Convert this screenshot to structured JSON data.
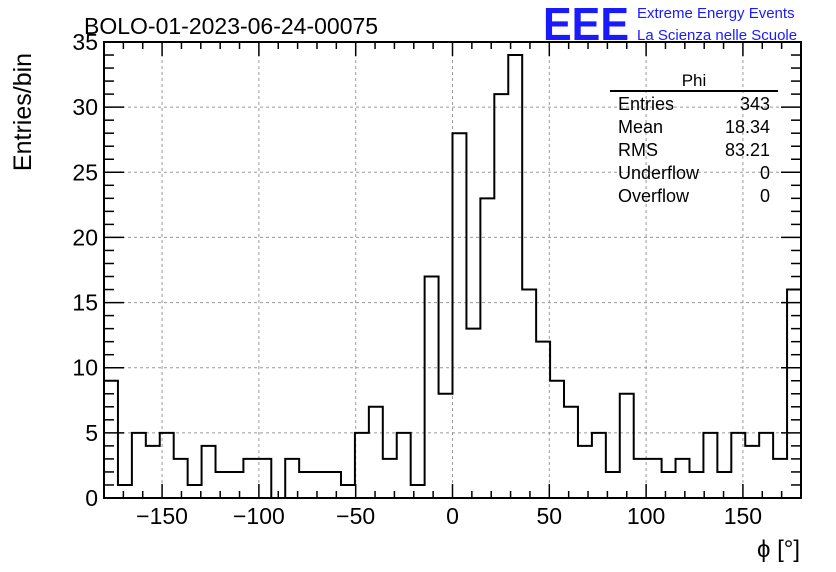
{
  "title": "BOLO-01-2023-06-24-00075",
  "logo": {
    "text": "EEE",
    "line1": "Extreme Energy Events",
    "line2": "La Scienza nelle Scuole",
    "color": "#1a1aff"
  },
  "stats": {
    "name": "Phi",
    "rows": [
      {
        "label": "Entries",
        "value": "343"
      },
      {
        "label": "Mean",
        "value": "18.34"
      },
      {
        "label": "RMS",
        "value": "83.21"
      },
      {
        "label": "Underflow",
        "value": "0"
      },
      {
        "label": "Overflow",
        "value": "0"
      }
    ]
  },
  "chart_data": {
    "type": "histogram",
    "xlabel": "ϕ [°]",
    "ylabel": "Entries/bin",
    "xlim": [
      -180,
      180
    ],
    "ylim": [
      0,
      35
    ],
    "grid": true,
    "bin_width": 7.2,
    "bin_edges_start": -180,
    "values": [
      9,
      1,
      5,
      4,
      5,
      3,
      1,
      4,
      2,
      2,
      3,
      3,
      0,
      3,
      2,
      2,
      2,
      1,
      5,
      7,
      3,
      5,
      1,
      17,
      8,
      28,
      13,
      23,
      31,
      34,
      16,
      12,
      9,
      7,
      4,
      5,
      2,
      8,
      3,
      3,
      2,
      3,
      2,
      5,
      2,
      5,
      4,
      5,
      3,
      16
    ],
    "xticks": [
      -150,
      -100,
      -50,
      0,
      50,
      100,
      150
    ],
    "xtick_labels": [
      "−150",
      "−100",
      "−50",
      "0",
      "50",
      "100",
      "150"
    ],
    "yticks": [
      0,
      5,
      10,
      15,
      20,
      25,
      30,
      35
    ],
    "ytick_labels": [
      "0",
      "5",
      "10",
      "15",
      "20",
      "25",
      "30",
      "35"
    ]
  }
}
